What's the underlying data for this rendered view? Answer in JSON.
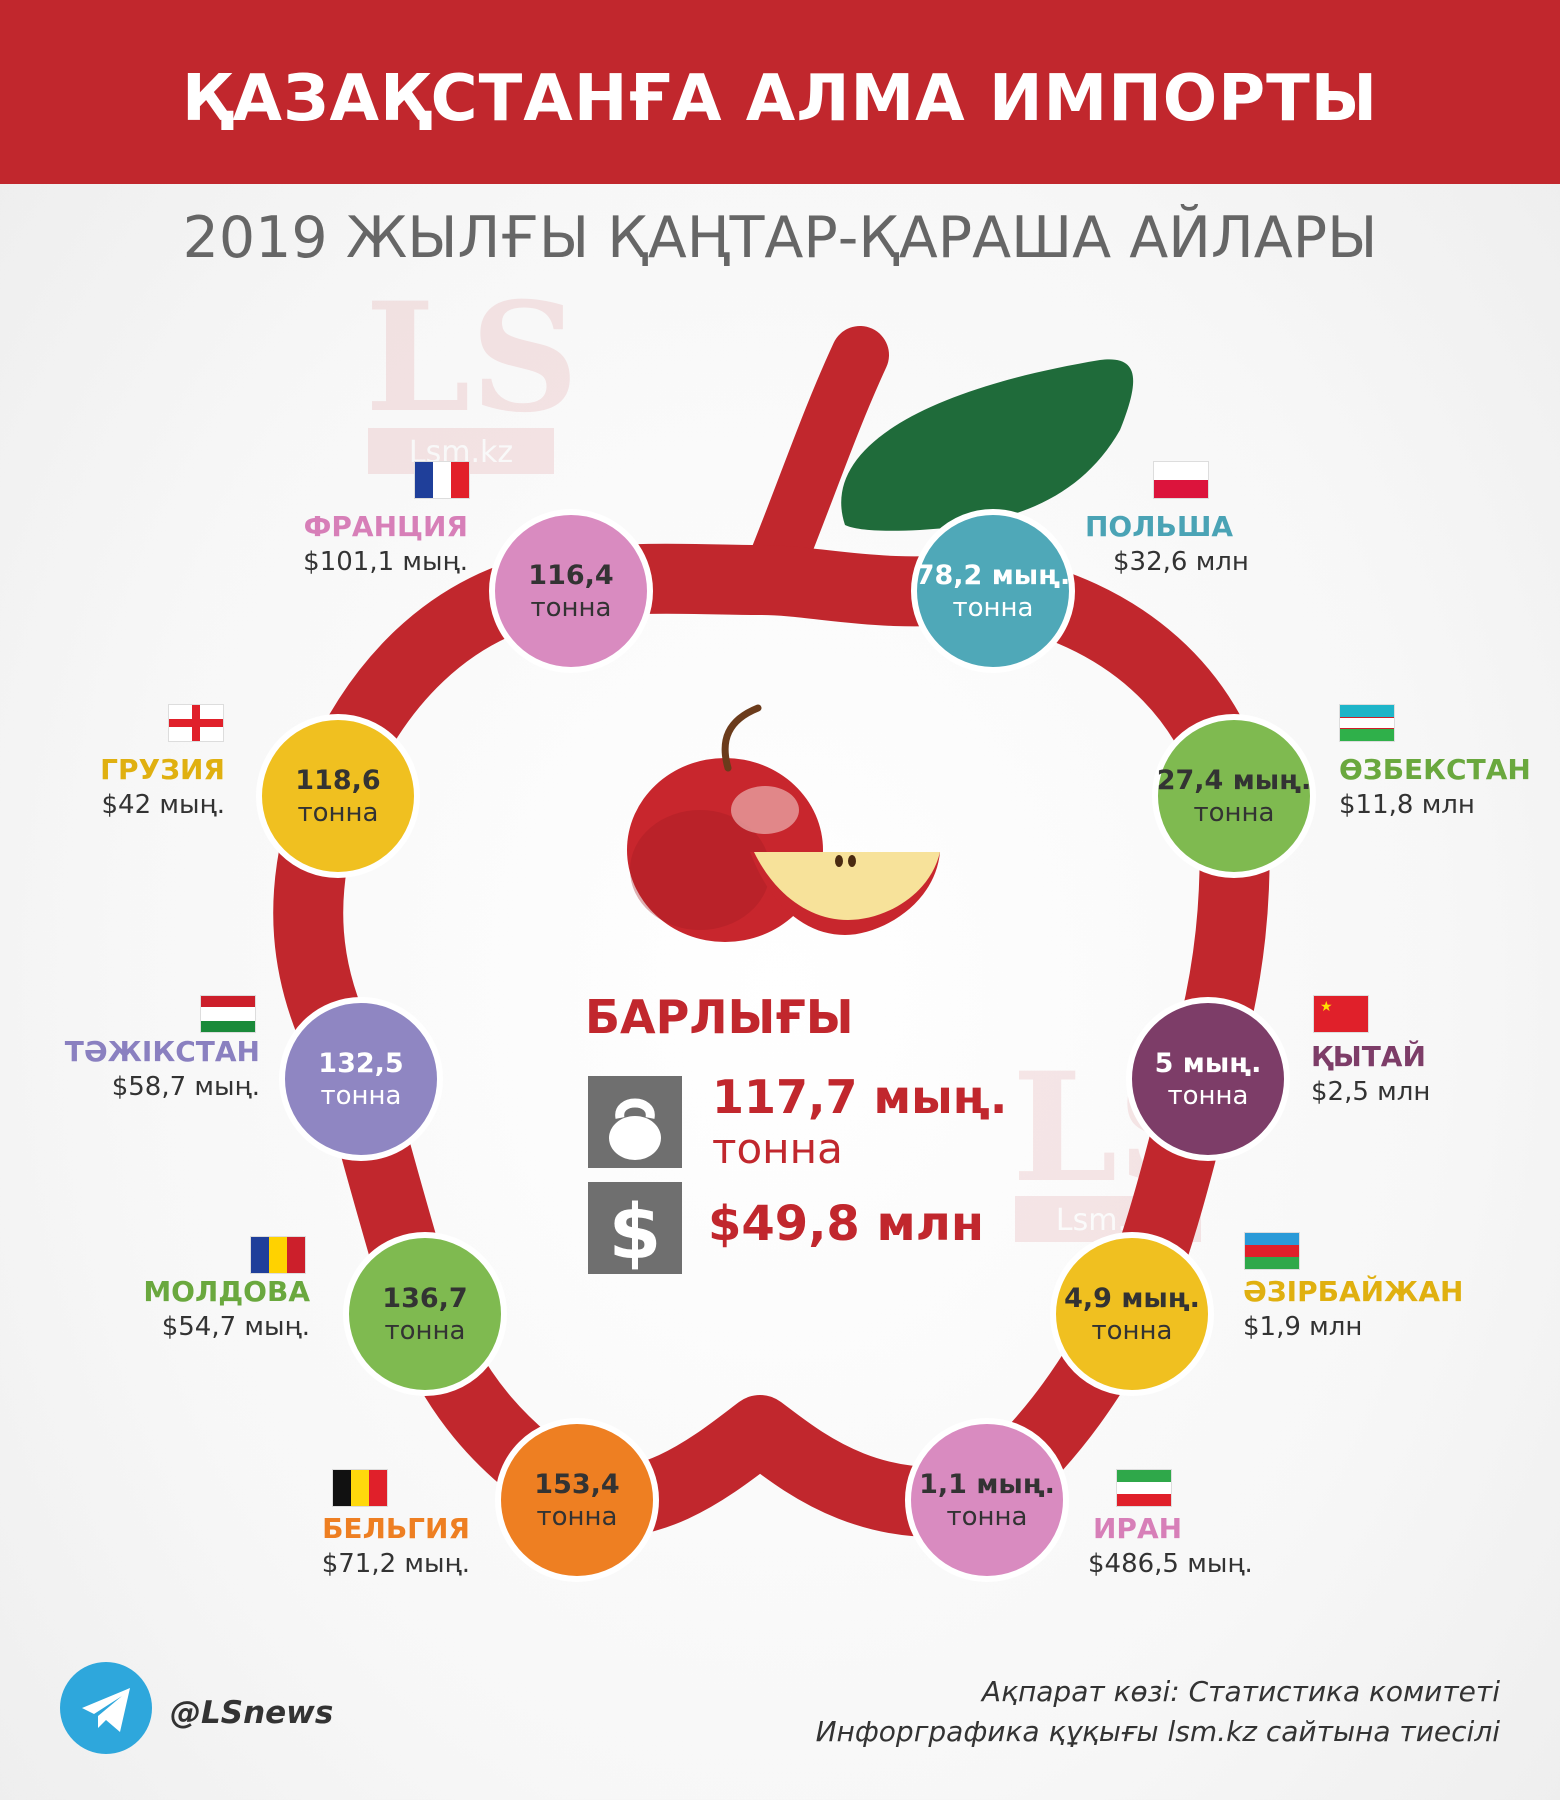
{
  "header": {
    "title": "ҚАЗАҚСТАНҒА АЛМА ИМПОРТЫ"
  },
  "subtitle": "2019 ЖЫЛҒЫ ҚАҢТАР-ҚАРАША АЙЛАРЫ",
  "watermark": {
    "logo": "LS",
    "site": "Lsm.kz"
  },
  "colors": {
    "brand_red": "#c1272d",
    "leaf_green": "#1f6b3a",
    "icon_gray": "#6f6f6f"
  },
  "countries": [
    {
      "id": "france",
      "name": "ФРАНЦИЯ",
      "value": "$101,1 мың.",
      "amount": "116,4",
      "unit": "тонна",
      "circle_color": "#d98bc0",
      "name_color": "#d77fb8",
      "flag": "france-flag"
    },
    {
      "id": "poland",
      "name": "ПОЛЬША",
      "value": "$32,6 млн",
      "amount": "78,2 мың.",
      "unit": "тонна",
      "circle_color": "#4fa8b8",
      "name_color": "#4aa3b5",
      "flag": "poland-flag"
    },
    {
      "id": "georgia",
      "name": "ГРУЗИЯ",
      "value": "$42 мың.",
      "amount": "118,6",
      "unit": "тонна",
      "circle_color": "#f0c020",
      "name_color": "#e0b010",
      "flag": "georgia-flag"
    },
    {
      "id": "uzbekistan",
      "name": "ӨЗБЕКСТАН",
      "value": "$11,8 млн",
      "amount": "27,4 мың.",
      "unit": "тонна",
      "circle_color": "#7fba50",
      "name_color": "#6aa83e",
      "flag": "uzbekistan-flag"
    },
    {
      "id": "tajikistan",
      "name": "ТӘЖІКСТАН",
      "value": "$58,7 мың.",
      "amount": "132,5",
      "unit": "тонна",
      "circle_color": "#8f86c2",
      "name_color": "#8a80c0",
      "flag": "tajikistan-flag"
    },
    {
      "id": "china",
      "name": "ҚЫТАЙ",
      "value": "$2,5 млн",
      "amount": "5 мың.",
      "unit": "тонна",
      "circle_color": "#7d3d68",
      "name_color": "#7d3d68",
      "flag": "china-flag"
    },
    {
      "id": "moldova",
      "name": "МОЛДОВА",
      "value": "$54,7 мың.",
      "amount": "136,7",
      "unit": "тонна",
      "circle_color": "#7fba50",
      "name_color": "#6aa83e",
      "flag": "moldova-flag"
    },
    {
      "id": "azerbaijan",
      "name": "ӘЗІРБАЙЖАН",
      "value": "$1,9 млн",
      "amount": "4,9 мың.",
      "unit": "тонна",
      "circle_color": "#f0c020",
      "name_color": "#e0b010",
      "flag": "azerbaijan-flag"
    },
    {
      "id": "belgium",
      "name": "БЕЛЬГИЯ",
      "value": "$71,2 мың.",
      "amount": "153,4",
      "unit": "тонна",
      "circle_color": "#ee7f22",
      "name_color": "#ee7f22",
      "flag": "belgium-flag"
    },
    {
      "id": "iran",
      "name": "ИРАН",
      "value": "$486,5 мың.",
      "amount": "1,1 мың.",
      "unit": "тонна",
      "circle_color": "#d98bc0",
      "name_color": "#d77fb8",
      "flag": "iran-flag"
    }
  ],
  "total": {
    "title": "БАРЛЫҒЫ",
    "amount": "117,7 мың.",
    "unit": "тонна",
    "value": "$49,8 млн",
    "weight_icon": "kettlebell-icon",
    "money_icon": "dollar-icon"
  },
  "footer": {
    "handle": "@LSnews",
    "handle_icon": "telegram-icon",
    "source": "Ақпарат көзі: Статистика комитеті",
    "copyright": "Инфорграфика құқығы lsm.kz сайтына  тиесілі"
  }
}
